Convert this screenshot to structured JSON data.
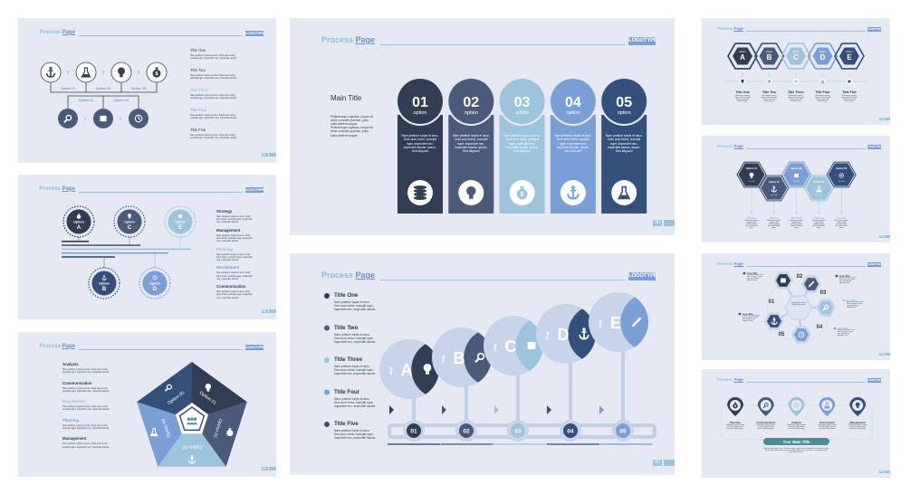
{
  "common": {
    "header_light": "Process",
    "header_bold": "Page",
    "logo": "LOGOTYPE",
    "page_number": "50",
    "body_text": "Nam pretium turpis et arcu. Duis arcu tortor, suscipit eget, imperdiet nec, imperdiet iaculis",
    "short_text": "Pellentesque egestas, neque sit amet convallis pulvinar, justo nulla eleifend augue."
  },
  "colors": {
    "slide_bg": "#e5e9f3",
    "dark": "#313d52",
    "slate": "#4b5a78",
    "light_blue": "#9ec4db",
    "periwinkle": "#7b9ed6",
    "navy": "#34507a",
    "pale": "#c8d4ea",
    "teal": "#4f8a96"
  },
  "slide_options": {
    "main_title": "Main Title",
    "main_text": "Pellentesque egestas, neque sit amet convallis pulvinar, justo nulla eleifend augue. Pellentesque egestas, neque sit amet convallis pulvinar, justo nulla eleifend augue.",
    "items": [
      {
        "num": "01",
        "label": "option",
        "text": "Nam pretium turpis et arcu. Duis arcu tortor, suscipit eget, imperdiet nec, imperdiet iaculis, ipsum. Sed aliquam",
        "icon": "coins",
        "color": "#313d52"
      },
      {
        "num": "02",
        "label": "option",
        "text": "Nam pretium turpis et arcu. Duis arcu tortor, suscipit eget, imperdiet nec, imperdiet iaculis, ipsum. Sed aliquam",
        "icon": "lightbulb",
        "color": "#4b5a78"
      },
      {
        "num": "03",
        "label": "option",
        "text": "Nam pretium turpis et arcu. Duis arcu tortor, suscipit eget, imperdiet nec, imperdiet iaculis, ipsum. Sed aliquam",
        "icon": "money-bag",
        "color": "#9ec4db"
      },
      {
        "num": "04",
        "label": "option",
        "text": "Nam pretium turpis et arcu. Duis arcu tortor, suscipit eget, imperdiet nec, imperdiet iaculis, ipsum. Sed aliquam",
        "icon": "anchor",
        "color": "#7b9ed6"
      },
      {
        "num": "05",
        "label": "option",
        "text": "Nam pretium turpis et arcu. Duis arcu tortor, suscipit eget, imperdiet nec, imperdiet iaculis, ipsum. Sed aliquam",
        "icon": "flask",
        "color": "#34507a"
      }
    ]
  },
  "slide_steps": {
    "titles": [
      {
        "title": "Title One",
        "color": "#313d52"
      },
      {
        "title": "Title Two",
        "color": "#4b5a78"
      },
      {
        "title": "Title Three",
        "color": "#9ec4db"
      },
      {
        "title": "Title Four",
        "color": "#7b9ed6"
      },
      {
        "title": "Title Five",
        "color": "#34507a"
      }
    ],
    "step_word": "step",
    "steps": [
      {
        "letter": "A",
        "num": "01",
        "icon": "lightbulb",
        "color": "#313d52"
      },
      {
        "letter": "B",
        "num": "02",
        "icon": "search",
        "color": "#4b5a78"
      },
      {
        "letter": "C",
        "num": "03",
        "icon": "database",
        "color": "#9ec4db"
      },
      {
        "letter": "D",
        "num": "04",
        "icon": "anchor",
        "color": "#34507a"
      },
      {
        "letter": "E",
        "num": "05",
        "icon": "pencil",
        "color": "#7b9ed6"
      }
    ]
  },
  "slide_network": {
    "top_icons": [
      "anchor",
      "flask",
      "lightbulb",
      "money-bag"
    ],
    "bottom_icons": [
      "search",
      "database",
      "clock"
    ],
    "options": [
      "Option 01",
      "Option 02",
      "Option 03",
      "Option 04",
      "Option 05"
    ],
    "titles": [
      {
        "title": "Title One",
        "color": "#313d52"
      },
      {
        "title": "Title Two",
        "color": "#313d52"
      },
      {
        "title": "Title Three",
        "color": "#9ec4db"
      },
      {
        "title": "Title Four",
        "color": "#7b9ed6"
      },
      {
        "title": "Title Five",
        "color": "#313d52"
      }
    ]
  },
  "slide_timeline": {
    "option_word": "Option",
    "options": [
      {
        "letter": "A",
        "icon": "money-bag",
        "color": "#313d52"
      },
      {
        "letter": "C",
        "icon": "lightbulb",
        "color": "#4b5a78"
      },
      {
        "letter": "E",
        "icon": "database",
        "color": "#9ec4db"
      },
      {
        "letter": "B",
        "icon": "anchor",
        "color": "#34507a"
      },
      {
        "letter": "D",
        "icon": "clock",
        "color": "#7b9ed6"
      }
    ],
    "titles": [
      {
        "title": "Strategy",
        "color": "#313d52"
      },
      {
        "title": "Management",
        "color": "#313d52"
      },
      {
        "title": "Planning",
        "color": "#9ec4db"
      },
      {
        "title": "Recruitment",
        "color": "#7b9ed6"
      },
      {
        "title": "Communication",
        "color": "#313d52"
      }
    ]
  },
  "slide_pentagon": {
    "titles": [
      {
        "title": "Analysis",
        "color": "#313d52"
      },
      {
        "title": "Communication",
        "color": "#313d52"
      },
      {
        "title": "Recruitment",
        "color": "#9ec4db"
      },
      {
        "title": "Planning",
        "color": "#7b9ed6"
      },
      {
        "title": "Management",
        "color": "#313d52"
      }
    ],
    "segments": [
      {
        "label": "Option 01",
        "icon": "lightbulb",
        "color": "#313d52"
      },
      {
        "label": "Option 02",
        "icon": "money-bag",
        "color": "#4b5a78"
      },
      {
        "label": "Option 03",
        "icon": "anchor",
        "color": "#9ec4db"
      },
      {
        "label": "Option 04",
        "icon": "flask",
        "color": "#7b9ed6"
      },
      {
        "label": "Option 05",
        "icon": "search",
        "color": "#34507a"
      }
    ],
    "center_icon": "people"
  },
  "slide_hex_row": {
    "option_word": "Option",
    "items": [
      {
        "letter": "A",
        "title": "Title One",
        "icon": "lightbulb",
        "color": "#313d52"
      },
      {
        "letter": "B",
        "title": "Title Two",
        "icon": "gear",
        "color": "#4b5a78"
      },
      {
        "letter": "C",
        "title": "Title Three",
        "icon": "database",
        "color": "#9ec4db"
      },
      {
        "letter": "D",
        "title": "Title Four",
        "icon": "flask",
        "color": "#7b9ed6"
      },
      {
        "letter": "E",
        "title": "Title Five",
        "icon": "database",
        "color": "#34507a"
      }
    ]
  },
  "slide_hex_zigzag": {
    "sub_label": "Your Title",
    "items": [
      {
        "option": "Option 01",
        "title": "Title One",
        "icon": "lightbulb",
        "color": "#313d52"
      },
      {
        "option": "Option 02",
        "title": "Title Two",
        "icon": "anchor",
        "color": "#4b5a78"
      },
      {
        "option": "Option 03",
        "title": "Title Three",
        "icon": "database",
        "color": "#7b9ed6"
      },
      {
        "option": "Option 04",
        "title": "Title Four",
        "icon": "flask",
        "color": "#9ec4db"
      },
      {
        "option": "Option 05",
        "title": "Title Five",
        "icon": "gear",
        "color": "#34507a"
      }
    ]
  },
  "slide_hex_cycle": {
    "center_text": "Lorem ipsum dolor sit amet, consectetur",
    "numbers": [
      "01",
      "02",
      "03",
      "04",
      "05"
    ],
    "nodes": [
      {
        "icon": "database",
        "color": "#313d52"
      },
      {
        "icon": "pencil",
        "color": "#4b5a78"
      },
      {
        "icon": "search",
        "color": "#9ec4db"
      },
      {
        "icon": "clock",
        "color": "#7b9ed6"
      },
      {
        "icon": "anchor",
        "color": "#34507a"
      }
    ],
    "labels": [
      {
        "title": "Your Title",
        "color": "#313d52"
      },
      {
        "title": "Your Title",
        "color": "#313d52"
      },
      {
        "title": "Your Title",
        "color": "#9ec4db"
      },
      {
        "title": "Your Title",
        "color": "#34507a"
      },
      {
        "title": "Your Title",
        "color": "#7b9ed6"
      }
    ]
  },
  "slide_pins": {
    "items": [
      {
        "title": "Planning",
        "icon": "money-bag",
        "color": "#313d52"
      },
      {
        "title": "Communication",
        "icon": "search",
        "color": "#4b5a78"
      },
      {
        "title": "Analysis",
        "icon": "clock",
        "color": "#9ec4db"
      },
      {
        "title": "Recruitment",
        "icon": "flask",
        "color": "#7b9ed6"
      },
      {
        "title": "Management",
        "icon": "lightbulb",
        "color": "#34507a"
      }
    ],
    "main_title": "Your Main Title",
    "main_text": "Nam pretium turpis et arcu. Duis arcu tortor, suscipit eget, imperdiet nec, imperdiet iaculis, ipsum. Sed aliquam ultrices mauris. Integer ante arcu, accumsan a, consectetuer eget, posuere ut, mauris."
  }
}
